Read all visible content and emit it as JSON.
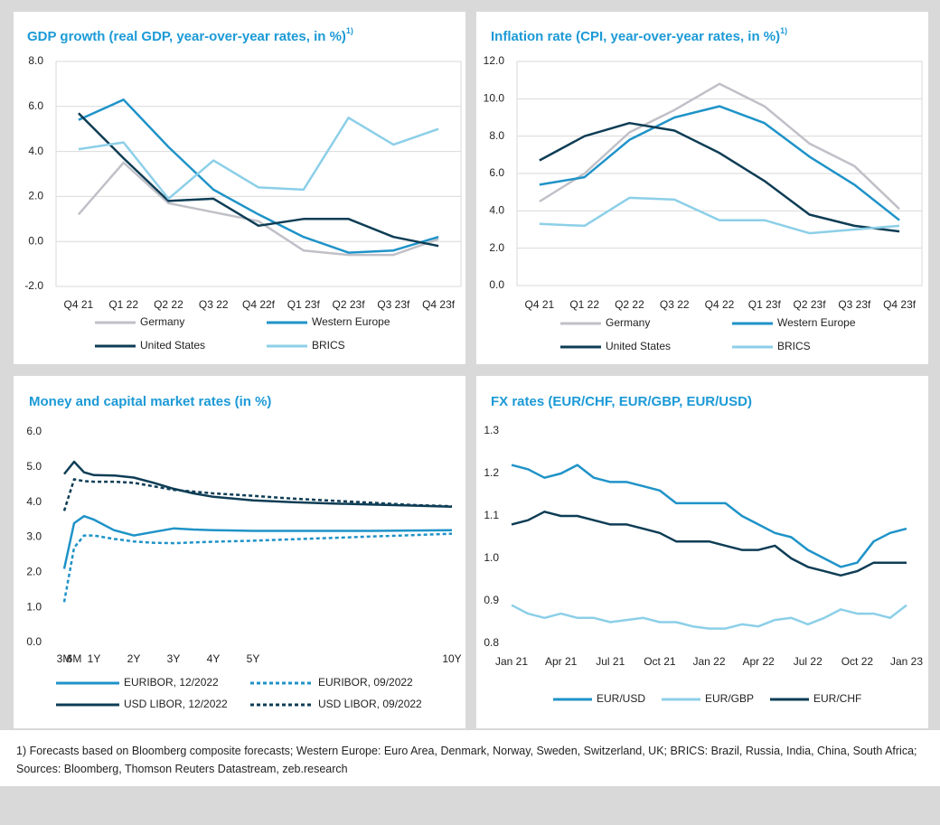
{
  "chart_data": [
    {
      "type": "line",
      "title": "GDP growth (real GDP, year-over-year rates, in %)",
      "title_note": "1)",
      "categories": [
        "Q4 21",
        "Q1 22",
        "Q2 22",
        "Q3 22",
        "Q4 22f",
        "Q1 23f",
        "Q2 23f",
        "Q3 23f",
        "Q4 23f"
      ],
      "series": [
        {
          "name": "Germany",
          "color": "#c0c0c8",
          "values": [
            1.2,
            3.5,
            1.7,
            1.3,
            0.9,
            -0.4,
            -0.6,
            -0.6,
            0.1
          ]
        },
        {
          "name": "Western Europe",
          "color": "#1f93c8",
          "values": [
            5.4,
            6.3,
            4.2,
            2.3,
            1.2,
            0.2,
            -0.5,
            -0.4,
            0.2
          ]
        },
        {
          "name": "United States",
          "color": "#0e3d55",
          "values": [
            5.7,
            3.7,
            1.8,
            1.9,
            0.7,
            1.0,
            1.0,
            0.2,
            -0.2
          ]
        },
        {
          "name": "BRICS",
          "color": "#8ccfe8",
          "values": [
            4.1,
            4.4,
            1.9,
            3.6,
            2.4,
            2.3,
            5.5,
            4.3,
            5.0
          ]
        }
      ],
      "ylim": [
        -2,
        8
      ],
      "yticks": [
        {
          "value": -2,
          "label": "-2.0"
        },
        {
          "value": 0,
          "label": "0.0"
        },
        {
          "value": 2,
          "label": "2.0"
        },
        {
          "value": 4,
          "label": "4.0"
        },
        {
          "value": 6,
          "label": "6.0"
        },
        {
          "value": 8,
          "label": "8.0"
        }
      ],
      "grid": true,
      "legend": "bottom"
    },
    {
      "type": "line",
      "title": "Inflation rate (CPI, year-over-year rates, in %)",
      "title_note": "1)",
      "categories": [
        "Q4 21",
        "Q1 22",
        "Q2 22",
        "Q3 22",
        "Q4 22",
        "Q1 23f",
        "Q2 23f",
        "Q3 23f",
        "Q4 23f"
      ],
      "series": [
        {
          "name": "Germany",
          "color": "#c0c0c8",
          "values": [
            4.5,
            6.0,
            8.2,
            9.4,
            10.8,
            9.6,
            7.6,
            6.4,
            4.1
          ]
        },
        {
          "name": "Western Europe",
          "color": "#1f93c8",
          "values": [
            5.4,
            5.8,
            7.8,
            9.0,
            9.6,
            8.7,
            6.9,
            5.4,
            3.5
          ]
        },
        {
          "name": "United States",
          "color": "#0e3d55",
          "values": [
            6.7,
            8.0,
            8.7,
            8.3,
            7.1,
            5.6,
            3.8,
            3.2,
            2.9
          ]
        },
        {
          "name": "BRICS",
          "color": "#8ccfe8",
          "values": [
            3.3,
            3.2,
            4.7,
            4.6,
            3.5,
            3.5,
            2.8,
            3.0,
            3.2
          ]
        }
      ],
      "ylim": [
        0,
        12
      ],
      "yticks": [
        {
          "value": 0,
          "label": "0.0"
        },
        {
          "value": 2,
          "label": "2.0"
        },
        {
          "value": 4,
          "label": "4.0"
        },
        {
          "value": 6,
          "label": "6.0"
        },
        {
          "value": 8,
          "label": "8.0"
        },
        {
          "value": 10,
          "label": "10.0"
        },
        {
          "value": 12,
          "label": "12.0"
        }
      ],
      "grid": true,
      "legend": "bottom"
    },
    {
      "type": "line",
      "title": "Money and capital market rates (in %)",
      "x": [
        0.25,
        0.5,
        0.75,
        1,
        1.5,
        2,
        2.5,
        3,
        3.5,
        4,
        5,
        6,
        7,
        8,
        9,
        10
      ],
      "series": [
        {
          "name": "EURIBOR, 12/2022",
          "color": "#1f93c8",
          "dashed": false,
          "values": [
            2.1,
            3.4,
            3.6,
            3.5,
            3.2,
            3.05,
            3.15,
            3.25,
            3.22,
            3.2,
            3.18,
            3.18,
            3.18,
            3.18,
            3.19,
            3.2
          ]
        },
        {
          "name": "EURIBOR, 09/2022",
          "color": "#1f93c8",
          "dashed": true,
          "values": [
            1.15,
            2.7,
            3.05,
            3.05,
            2.95,
            2.88,
            2.84,
            2.83,
            2.85,
            2.87,
            2.9,
            2.94,
            2.98,
            3.02,
            3.06,
            3.1
          ]
        },
        {
          "name": "USD LIBOR, 12/2022",
          "color": "#0e3d55",
          "dashed": false,
          "values": [
            4.8,
            5.15,
            4.85,
            4.77,
            4.76,
            4.7,
            4.55,
            4.38,
            4.25,
            4.15,
            4.05,
            4.0,
            3.96,
            3.93,
            3.9,
            3.87
          ]
        },
        {
          "name": "USD LIBOR, 09/2022",
          "color": "#0e3d55",
          "dashed": true,
          "values": [
            3.75,
            4.65,
            4.6,
            4.58,
            4.58,
            4.55,
            4.45,
            4.35,
            4.3,
            4.25,
            4.18,
            4.1,
            4.04,
            3.98,
            3.92,
            3.88
          ]
        }
      ],
      "xlim": [
        0,
        10
      ],
      "xticks": [
        {
          "value": 0.25,
          "label": "3M"
        },
        {
          "value": 0.5,
          "label": "6M"
        },
        {
          "value": 1,
          "label": "1Y"
        },
        {
          "value": 2,
          "label": "2Y"
        },
        {
          "value": 3,
          "label": "3Y"
        },
        {
          "value": 4,
          "label": "4Y"
        },
        {
          "value": 5,
          "label": "5Y"
        },
        {
          "value": 10,
          "label": "10Y"
        }
      ],
      "ylim": [
        0,
        6
      ],
      "yticks": [
        {
          "value": 0,
          "label": "0.0"
        },
        {
          "value": 1,
          "label": "1.0"
        },
        {
          "value": 2,
          "label": "2.0"
        },
        {
          "value": 3,
          "label": "3.0"
        },
        {
          "value": 4,
          "label": "4.0"
        },
        {
          "value": 5,
          "label": "5.0"
        },
        {
          "value": 6,
          "label": "6.0"
        }
      ],
      "grid": false,
      "legend": "bottom"
    },
    {
      "type": "line",
      "title": "FX rates (EUR/CHF, EUR/GBP, EUR/USD)",
      "x": [
        0,
        1,
        2,
        3,
        4,
        5,
        6,
        7,
        8,
        9,
        10,
        11,
        12,
        13,
        14,
        15,
        16,
        17,
        18,
        19,
        20,
        21,
        22,
        23,
        24
      ],
      "series": [
        {
          "name": "EUR/USD",
          "color": "#1f93c8",
          "values": [
            1.22,
            1.21,
            1.19,
            1.2,
            1.22,
            1.19,
            1.18,
            1.18,
            1.17,
            1.16,
            1.13,
            1.13,
            1.13,
            1.13,
            1.1,
            1.08,
            1.06,
            1.05,
            1.02,
            1.0,
            0.98,
            0.99,
            1.04,
            1.06,
            1.07
          ]
        },
        {
          "name": "EUR/GBP",
          "color": "#8ccfe8",
          "values": [
            0.89,
            0.87,
            0.86,
            0.87,
            0.86,
            0.86,
            0.85,
            0.855,
            0.86,
            0.85,
            0.85,
            0.84,
            0.835,
            0.835,
            0.845,
            0.84,
            0.855,
            0.86,
            0.845,
            0.86,
            0.88,
            0.87,
            0.87,
            0.86,
            0.89
          ]
        },
        {
          "name": "EUR/CHF",
          "color": "#0e3d55",
          "values": [
            1.08,
            1.09,
            1.11,
            1.1,
            1.1,
            1.09,
            1.08,
            1.08,
            1.07,
            1.06,
            1.04,
            1.04,
            1.04,
            1.03,
            1.02,
            1.02,
            1.03,
            1.0,
            0.98,
            0.97,
            0.96,
            0.97,
            0.99,
            0.99,
            0.99
          ]
        }
      ],
      "xlim": [
        0,
        24
      ],
      "xticks": [
        {
          "value": 0,
          "label": "Jan 21"
        },
        {
          "value": 3,
          "label": "Apr 21"
        },
        {
          "value": 6,
          "label": "Jul 21"
        },
        {
          "value": 9,
          "label": "Oct 21"
        },
        {
          "value": 12,
          "label": "Jan 22"
        },
        {
          "value": 15,
          "label": "Apr 22"
        },
        {
          "value": 18,
          "label": "Jul 22"
        },
        {
          "value": 21,
          "label": "Oct 22"
        },
        {
          "value": 24,
          "label": "Jan 23"
        }
      ],
      "ylim": [
        0.8,
        1.3
      ],
      "yticks": [
        0.8,
        0.9,
        {
          "value": 1,
          "label": "1.0"
        },
        1.1,
        1.2,
        1.3
      ],
      "grid": false,
      "legend": "bottom"
    }
  ],
  "footnote": "1) Forecasts based on Bloomberg composite forecasts; Western Europe: Euro Area, Denmark, Norway, Sweden, Switzerland, UK; BRICS: Brazil, Russia, India, China, South Africa; Sources: Bloomberg, Thomson Reuters Datastream, zeb.research"
}
